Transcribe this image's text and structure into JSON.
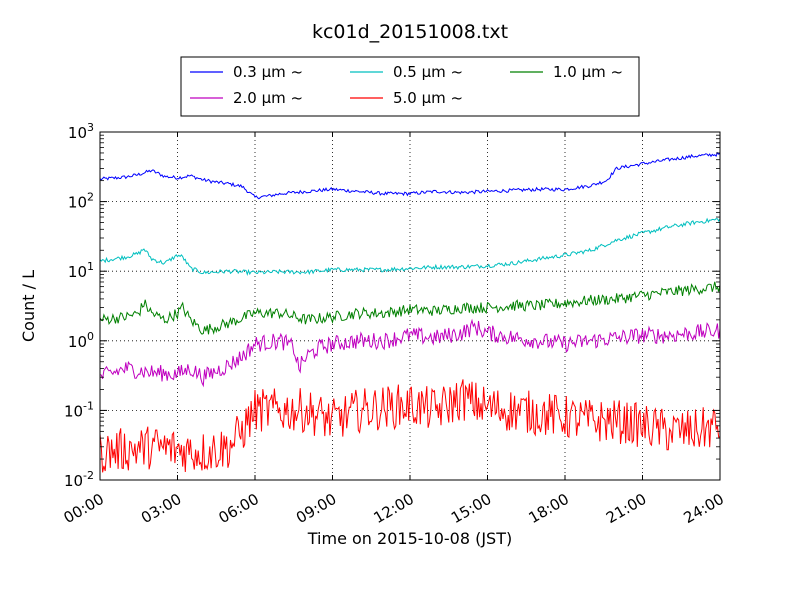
{
  "chart_data": {
    "type": "line",
    "title": "kc01d_20151008.txt",
    "xlabel": "Time on 2015-10-08 (JST)",
    "ylabel": "Count / L",
    "x_ticks": [
      "00:00",
      "03:00",
      "06:00",
      "09:00",
      "12:00",
      "15:00",
      "18:00",
      "21:00",
      "24:00"
    ],
    "xlim_hours": [
      0,
      24
    ],
    "y_scale": "log",
    "ylim": [
      0.01,
      1000
    ],
    "y_ticks": [
      {
        "base": "10",
        "exp": "-2",
        "value": 0.01
      },
      {
        "base": "10",
        "exp": "-1",
        "value": 0.1
      },
      {
        "base": "10",
        "exp": "0",
        "value": 1
      },
      {
        "base": "10",
        "exp": "1",
        "value": 10
      },
      {
        "base": "10",
        "exp": "2",
        "value": 100
      },
      {
        "base": "10",
        "exp": "3",
        "value": 1000
      }
    ],
    "grid": true,
    "legend_position": "top-center, above plot",
    "series": [
      {
        "name": "0.3 μm ~",
        "color": "#0000ff",
        "noise": 0.025,
        "x": [
          0,
          1,
          1.5,
          2,
          2.5,
          3,
          3.5,
          4,
          4.5,
          5,
          5.5,
          6,
          6.5,
          7,
          8,
          9,
          10,
          11,
          12,
          13,
          14,
          15,
          16,
          17,
          18,
          19,
          19.6,
          20,
          21,
          22,
          23,
          24
        ],
        "y": [
          210,
          225,
          245,
          280,
          230,
          220,
          235,
          205,
          190,
          180,
          165,
          115,
          120,
          130,
          140,
          150,
          140,
          130,
          130,
          140,
          135,
          140,
          145,
          150,
          150,
          170,
          200,
          300,
          350,
          400,
          450,
          480
        ]
      },
      {
        "name": "0.5 μm ~",
        "color": "#00bfbf",
        "noise": 0.03,
        "x": [
          0,
          1,
          1.5,
          1.7,
          2,
          2.5,
          3,
          3.2,
          3.5,
          4,
          5,
          6,
          7,
          8,
          9,
          10,
          11,
          12,
          13,
          14,
          15,
          16,
          17,
          18,
          19,
          20,
          21,
          22,
          23,
          24
        ],
        "y": [
          14,
          16,
          18,
          21,
          15,
          13,
          17,
          16,
          11,
          9.5,
          10,
          9.5,
          9.8,
          9.7,
          10.5,
          10.5,
          10.5,
          11,
          11.5,
          11.5,
          12,
          13,
          15,
          17,
          20,
          28,
          35,
          43,
          50,
          56
        ]
      },
      {
        "name": "1.0 μm ~",
        "color": "#008000",
        "noise": 0.08,
        "x": [
          0,
          1,
          1.5,
          1.7,
          2,
          2.5,
          3,
          3.2,
          3.5,
          4,
          5,
          6,
          7,
          8,
          9,
          10,
          11,
          12,
          13,
          14,
          15,
          16,
          17,
          18,
          19,
          20,
          21,
          22,
          23,
          24
        ],
        "y": [
          2,
          2.2,
          2.5,
          3.5,
          2.5,
          2,
          2.5,
          3,
          2,
          1.4,
          1.8,
          2.5,
          2.5,
          2,
          2.2,
          2.5,
          2.5,
          2.8,
          2.7,
          3,
          3,
          3.2,
          3.2,
          3.5,
          3.8,
          4,
          4.5,
          5,
          5.5,
          6
        ]
      },
      {
        "name": "2.0 μm ~",
        "color": "#bf00bf",
        "noise": 0.12,
        "x": [
          0,
          1,
          2,
          3,
          3.5,
          4,
          5,
          5.5,
          6,
          7,
          7.5,
          7.7,
          8,
          8.5,
          9,
          10,
          11,
          12,
          13,
          14,
          14.5,
          15,
          16,
          17,
          18,
          19,
          20,
          21,
          22,
          23,
          24
        ],
        "y": [
          0.3,
          0.4,
          0.35,
          0.33,
          0.4,
          0.3,
          0.45,
          0.6,
          0.9,
          1,
          0.8,
          0.4,
          0.6,
          0.8,
          0.9,
          1,
          1,
          1.2,
          1.1,
          1.3,
          1.6,
          1.3,
          1.1,
          1,
          0.9,
          1,
          1.1,
          1.2,
          1.2,
          1.3,
          1.4
        ]
      },
      {
        "name": "5.0 μm ~",
        "color": "#ff0000",
        "noise": 0.32,
        "x": [
          0,
          2,
          4,
          5,
          5.5,
          6,
          8,
          9,
          10,
          12,
          13,
          14,
          15,
          16,
          17,
          18,
          19,
          20,
          21,
          22,
          23,
          24
        ],
        "y": [
          0.025,
          0.03,
          0.025,
          0.03,
          0.05,
          0.1,
          0.1,
          0.07,
          0.1,
          0.12,
          0.1,
          0.15,
          0.11,
          0.1,
          0.09,
          0.08,
          0.07,
          0.07,
          0.06,
          0.05,
          0.05,
          0.06
        ]
      }
    ]
  }
}
